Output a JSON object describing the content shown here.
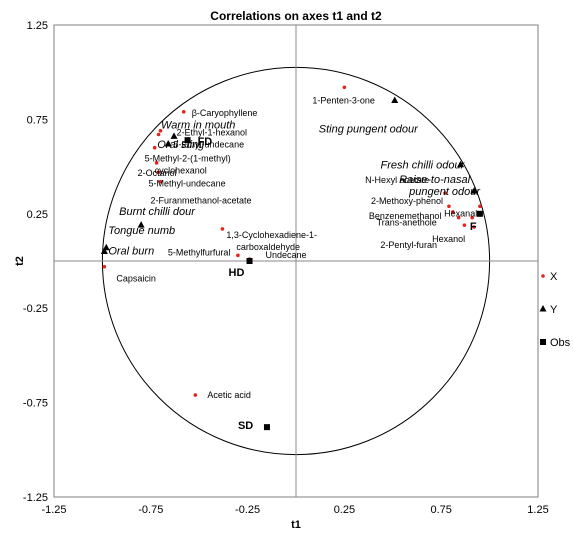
{
  "chart_data": {
    "type": "scatter",
    "title": "Correlations on axes t1 and t2",
    "xlabel": "t1",
    "ylabel": "t2",
    "xlim": [
      -1.25,
      1.25
    ],
    "ylim": [
      -1.25,
      1.25
    ],
    "xticks": [
      "-1.25",
      "-0.75",
      "-0.25",
      "0.25",
      "0.75",
      "1.25"
    ],
    "yticks": [
      "1.25",
      "0.75",
      "0.25",
      "-0.25",
      "-0.75",
      "-1.25"
    ],
    "unit_circle": true,
    "grid": false,
    "legend_position": "right",
    "series": [
      {
        "name": "X",
        "marker": "dot",
        "color": "#e8231e",
        "points": [
          {
            "x": 0.25,
            "y": 0.92,
            "label": "1-Penten-3-one"
          },
          {
            "x": -0.58,
            "y": 0.79,
            "label": "β-Caryophyllene"
          },
          {
            "x": -0.7,
            "y": 0.69,
            "label": "2-Ethyl-1-hexanol"
          },
          {
            "x": -0.71,
            "y": 0.67,
            "label": "5-Ethyl-undecane"
          },
          {
            "x": -0.73,
            "y": 0.6,
            "label": "5-Methyl-2-(1-methyl) cyclohexanol"
          },
          {
            "x": -0.72,
            "y": 0.52,
            "label": "2-Octanol"
          },
          {
            "x": -0.71,
            "y": 0.47,
            "label": "5-Methyl-undecane"
          },
          {
            "x": -0.7,
            "y": 0.42,
            "label": "2-Furanmethanol-acetate"
          },
          {
            "x": -0.38,
            "y": 0.17,
            "label": "1,3-Cyclohexadiene-1-carboxaldehyde"
          },
          {
            "x": -0.3,
            "y": 0.03,
            "label": "5-Methylfurfural"
          },
          {
            "x": -0.24,
            "y": 0.01,
            "label": "Undecane"
          },
          {
            "x": -0.99,
            "y": -0.03,
            "label": "Capsaicin"
          },
          {
            "x": -0.52,
            "y": -0.71,
            "label": "Acetic acid"
          },
          {
            "x": 0.77,
            "y": 0.36,
            "label": "N-Hexyl acetate"
          },
          {
            "x": 0.79,
            "y": 0.29,
            "label": "2-Methoxy-phenol"
          },
          {
            "x": 0.81,
            "y": 0.26,
            "label": "Benzenemethanol"
          },
          {
            "x": 0.84,
            "y": 0.23,
            "label": "Trans-anethole"
          },
          {
            "x": 0.87,
            "y": 0.19,
            "label": "2-Pentyl-furan"
          },
          {
            "x": 0.91,
            "y": 0.23,
            "label": "Hexanal"
          },
          {
            "x": 0.92,
            "y": 0.18,
            "label": "Hexanol"
          },
          {
            "x": 0.95,
            "y": 0.29,
            "label": ""
          }
        ]
      },
      {
        "name": "Y",
        "marker": "triangle",
        "color": "#000000",
        "points": [
          {
            "x": 0.51,
            "y": 0.85,
            "label": "Sting pungent odour"
          },
          {
            "x": 0.85,
            "y": 0.51,
            "label": "Fresh chilli odour"
          },
          {
            "x": 0.92,
            "y": 0.37,
            "label": "Raise-to-nasal pungent odour"
          },
          {
            "x": -0.63,
            "y": 0.66,
            "label": "Warm in mouth"
          },
          {
            "x": -0.66,
            "y": 0.62,
            "label": "Oral sting"
          },
          {
            "x": -0.8,
            "y": 0.19,
            "label": "Burnt chilli dour"
          },
          {
            "x": -0.98,
            "y": 0.07,
            "label": "Tongue numb"
          },
          {
            "x": -0.99,
            "y": 0.05,
            "label": "Oral burn"
          }
        ]
      },
      {
        "name": "Obs",
        "marker": "square",
        "color": "#000000",
        "points": [
          {
            "x": -0.56,
            "y": 0.64,
            "label": "FD"
          },
          {
            "x": -0.24,
            "y": 0.0,
            "label": "HD"
          },
          {
            "x": -0.15,
            "y": -0.88,
            "label": "SD"
          },
          {
            "x": 0.95,
            "y": 0.25,
            "label": "F"
          }
        ]
      }
    ]
  }
}
